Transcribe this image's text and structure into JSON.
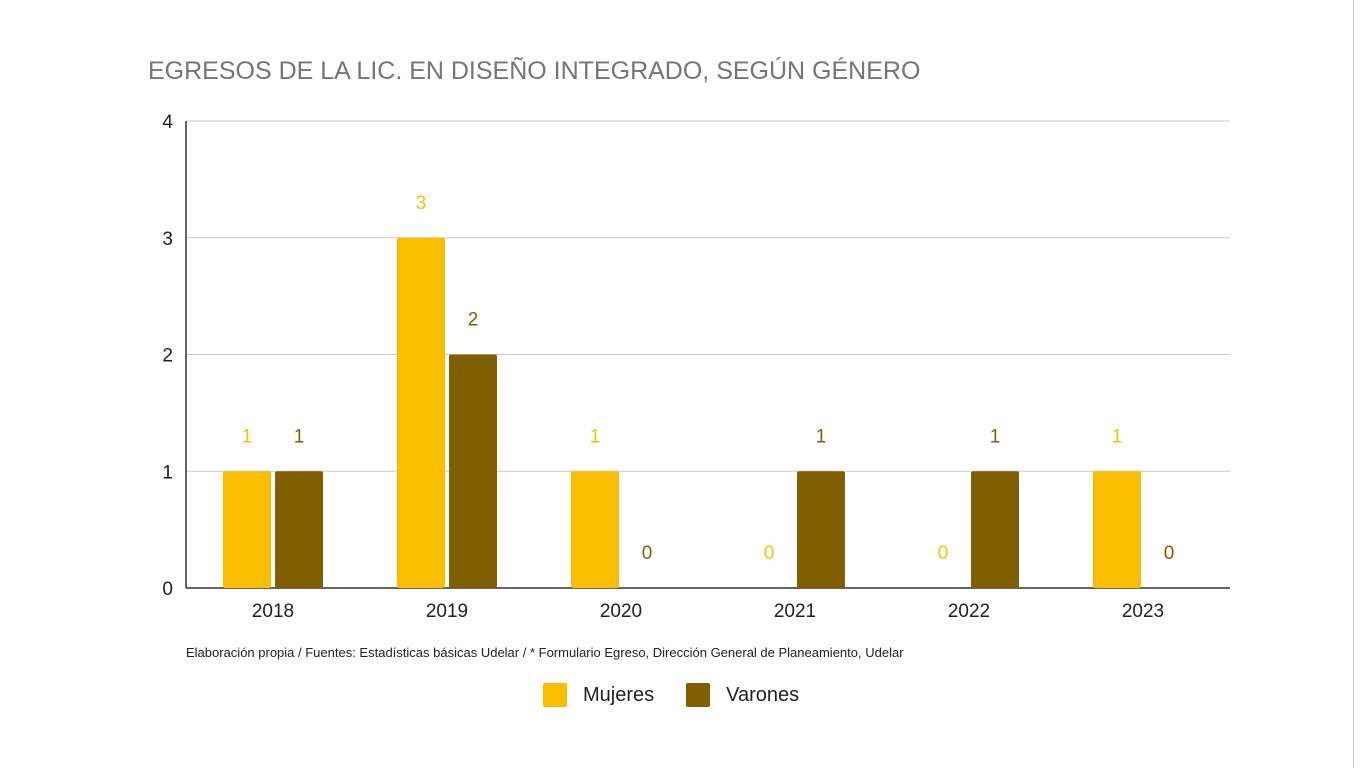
{
  "chart_data": {
    "type": "bar",
    "title": "EGRESOS DE LA LIC. EN DISEÑO INTEGRADO, SEGÚN GÉNERO",
    "categories": [
      "2018",
      "2019",
      "2020",
      "2021",
      "2022",
      "2023"
    ],
    "series": [
      {
        "name": "Mujeres",
        "values": [
          1,
          3,
          1,
          0,
          0,
          1
        ],
        "color": "#F9BE00"
      },
      {
        "name": "Varones",
        "values": [
          1,
          2,
          0,
          1,
          1,
          0
        ],
        "color": "#7F5F00"
      }
    ],
    "ylim": [
      0,
      4
    ],
    "yticks": [
      0,
      1,
      2,
      3,
      4
    ],
    "grid": true,
    "data_labels": true,
    "legend_position": "bottom",
    "source_note": "Elaboración propia / Fuentes: Estadísticas básicas Udelar / * Formulario Egreso, Dirección General de Planeamiento, Udelar"
  }
}
